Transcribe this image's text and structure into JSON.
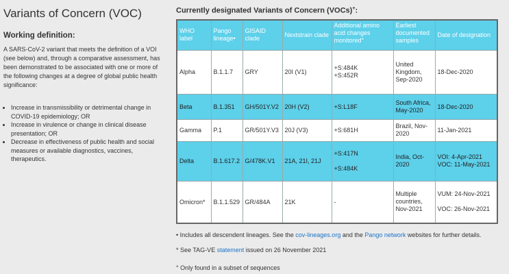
{
  "left": {
    "title": "Variants of Concern (VOC)",
    "subtitle": "Working definition:",
    "definition": "A SARS-CoV-2 variant that meets the definition of a VOI (see below) and, through a comparative assessment, has been demonstrated to be associated with one or more of the following changes at a degree of global public health significance:",
    "bullets": [
      "Increase in transmissibility or detrimental change in COVID-19 epidemiology; OR",
      "Increase in virulence or change in clinical disease presentation; OR",
      "Decrease in effectiveness of public health and social measures or available diagnostics, vaccines, therapeutics."
    ]
  },
  "right": {
    "title": "Currently designated Variants of Concern (VOCs)",
    "title_sup": "+",
    "title_colon": ":"
  },
  "table": {
    "headers": {
      "who": "WHO label",
      "pango": "Pango lineage•",
      "gisaid": "GISAID clade",
      "nextstrain": "Nextstrain clade",
      "amino": "Additional amino acid changes monitored°",
      "earliest": "Earliest documented samples",
      "date": "Date of designation"
    },
    "rows": [
      {
        "who": "Alpha",
        "pango": "B.1.1.7",
        "gisaid": "GRY",
        "nextstrain": "20I (V1)",
        "amino": [
          "+S:484K",
          "+S:452R"
        ],
        "earliest": "United Kingdom, Sep-2020",
        "date": [
          "18-Dec-2020"
        ]
      },
      {
        "who": "Beta",
        "pango": "B.1.351",
        "gisaid": "GH/501Y.V2",
        "nextstrain": "20H (V2)",
        "amino": [
          "+S:L18F"
        ],
        "earliest": "South Africa, May-2020",
        "date": [
          "18-Dec-2020"
        ]
      },
      {
        "who": "Gamma",
        "pango": "P.1",
        "gisaid": "GR/501Y.V3",
        "nextstrain": "20J (V3)",
        "amino": [
          "+S:681H"
        ],
        "earliest": "Brazil, Nov-2020",
        "date": [
          "11-Jan-2021"
        ]
      },
      {
        "who": "Delta",
        "pango": "B.1.617.2",
        "gisaid": "G/478K.V1",
        "nextstrain": "21A, 21I, 21J",
        "amino": [
          "+S:417N",
          "+S:484K"
        ],
        "earliest": "India, Oct-2020",
        "date": [
          "VOI: 4-Apr-2021",
          "VOC: 11-May-2021"
        ]
      },
      {
        "who": "Omicron*",
        "pango": "B.1.1.529",
        "gisaid": "GR/484A",
        "nextstrain": "21K",
        "amino": [
          "-"
        ],
        "earliest": "Multiple countries, Nov-2021",
        "date": [
          "VUM: 24-Nov-2021",
          "VOC: 26-Nov-2021"
        ]
      }
    ]
  },
  "notes": {
    "n1_pre": "• Includes all descendent lineages. See the ",
    "n1_link1": "cov-lineages.org",
    "n1_mid": " and the ",
    "n1_link2": "Pango network",
    "n1_post": " websites for further details.",
    "n2_pre": "* See TAG-VE ",
    "n2_link": "statement",
    "n2_post": " issued on 26 November 2021",
    "n3": "° Only found in a subset of sequences"
  }
}
